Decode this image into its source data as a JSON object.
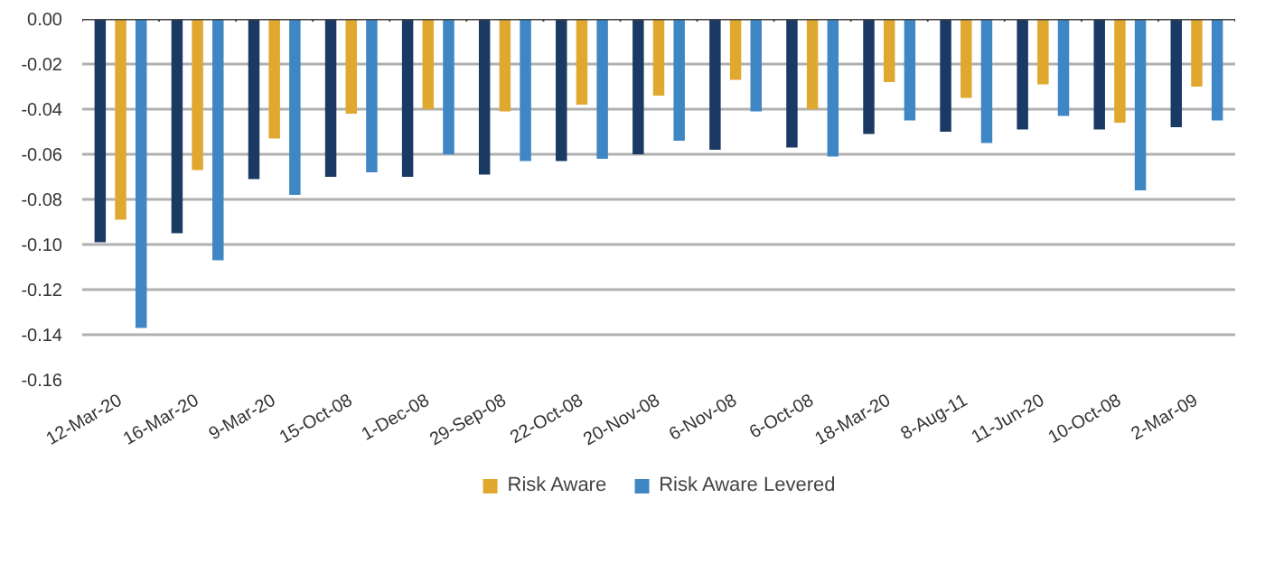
{
  "chart_data": {
    "type": "bar",
    "categories": [
      "12-Mar-20",
      "16-Mar-20",
      "9-Mar-20",
      "15-Oct-08",
      "1-Dec-08",
      "29-Sep-08",
      "22-Oct-08",
      "20-Nov-08",
      "6-Nov-08",
      "6-Oct-08",
      "18-Mar-20",
      "8-Aug-11",
      "11-Jun-20",
      "10-Oct-08",
      "2-Mar-09"
    ],
    "series": [
      {
        "color": "#1b3a63",
        "values": [
          -0.099,
          -0.095,
          -0.071,
          -0.07,
          -0.07,
          -0.069,
          -0.063,
          -0.06,
          -0.058,
          -0.057,
          -0.051,
          -0.05,
          -0.049,
          -0.049,
          -0.048
        ]
      },
      {
        "name": "Risk Aware",
        "color": "#e0a82e",
        "values": [
          -0.089,
          -0.067,
          -0.053,
          -0.042,
          -0.04,
          -0.041,
          -0.038,
          -0.034,
          -0.027,
          -0.04,
          -0.028,
          -0.035,
          -0.029,
          -0.046,
          -0.03
        ]
      },
      {
        "name": "Risk Aware Levered",
        "color": "#3e87c4",
        "values": [
          -0.137,
          -0.107,
          -0.078,
          -0.068,
          -0.06,
          -0.063,
          -0.062,
          -0.054,
          -0.041,
          -0.061,
          -0.045,
          -0.055,
          -0.043,
          -0.076,
          -0.045
        ]
      }
    ],
    "ylim": [
      -0.16,
      0
    ],
    "yticks": [
      {
        "value": -0.16,
        "label": "-0.16"
      },
      {
        "value": -0.14,
        "label": "-0.14"
      },
      {
        "value": -0.12,
        "label": "-0.12"
      },
      {
        "value": -0.1,
        "label": "-0.10"
      },
      {
        "value": -0.08,
        "label": "-0.08"
      },
      {
        "value": -0.06,
        "label": "-0.06"
      },
      {
        "value": -0.04,
        "label": "-0.04"
      },
      {
        "value": -0.02,
        "label": "-0.02"
      },
      {
        "value": 0,
        "label": "0.00"
      }
    ],
    "grid": "y",
    "legend": "bottom"
  }
}
